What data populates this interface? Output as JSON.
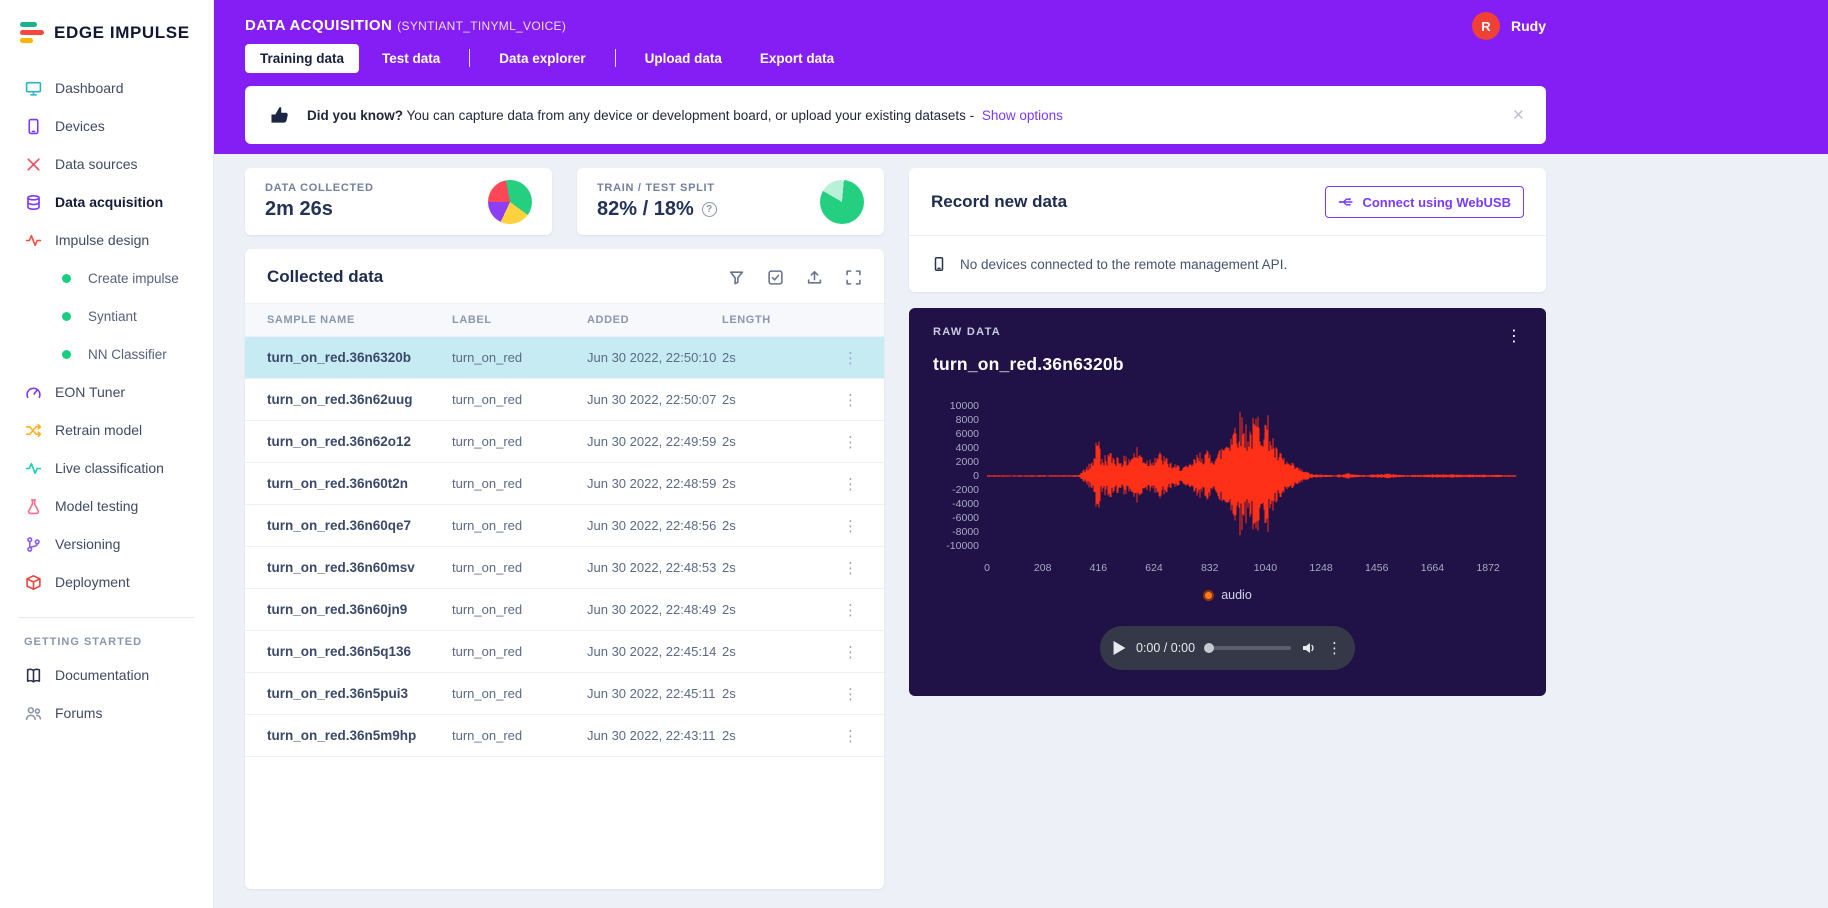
{
  "colors": {
    "header_purple": "#851ef5",
    "accent_purple": "#7b3aff",
    "wave_red": "#ff3018",
    "raw_card_bg": "#201147",
    "selected_row": "#c7ebf2",
    "avatar_red": "#ef4136"
  },
  "sidebar": {
    "logo_text": "EDGE IMPULSE",
    "items": [
      {
        "label": "Dashboard",
        "icon": "monitor-icon",
        "color": "#2bb3c0"
      },
      {
        "label": "Devices",
        "icon": "phone-icon",
        "color": "#7b3aff"
      },
      {
        "label": "Data sources",
        "icon": "data-sources-icon",
        "color": "#f5495f"
      },
      {
        "label": "Data acquisition",
        "icon": "database-icon",
        "color": "#7b3aff",
        "active": true
      },
      {
        "label": "Impulse design",
        "icon": "impulse-icon",
        "color": "#ff4a3d"
      },
      {
        "label": "Create impulse",
        "icon": "green-dot-icon",
        "color": "#17cf7e",
        "sub": true
      },
      {
        "label": "Syntiant",
        "icon": "green-dot-icon",
        "color": "#17cf7e",
        "sub": true
      },
      {
        "label": "NN Classifier",
        "icon": "green-dot-icon",
        "color": "#17cf7e",
        "sub": true
      },
      {
        "label": "EON Tuner",
        "icon": "gauge-icon",
        "color": "#7b3aff"
      },
      {
        "label": "Retrain model",
        "icon": "shuffle-icon",
        "color": "#ffb020"
      },
      {
        "label": "Live classification",
        "icon": "pulse-icon",
        "color": "#17cfae"
      },
      {
        "label": "Model testing",
        "icon": "flask-icon",
        "color": "#ff6b8a"
      },
      {
        "label": "Versioning",
        "icon": "branch-icon",
        "color": "#8a5cf6"
      },
      {
        "label": "Deployment",
        "icon": "box-icon",
        "color": "#e8453c"
      }
    ],
    "section_header": "GETTING STARTED",
    "footer_items": [
      {
        "label": "Documentation",
        "icon": "book-icon",
        "color": "#27304d"
      },
      {
        "label": "Forums",
        "icon": "people-icon",
        "color": "#8b96ab"
      }
    ]
  },
  "header": {
    "title": "DATA ACQUISITION",
    "subtitle": "(SYNTIANT_TINYML_VOICE)",
    "user": {
      "initial": "R",
      "name": "Rudy"
    },
    "tabs": [
      {
        "label": "Training data",
        "active": true
      },
      {
        "label": "Test data",
        "divider_after": true
      },
      {
        "label": "Data explorer",
        "divider_after": true
      },
      {
        "label": "Upload data"
      },
      {
        "label": "Export data"
      }
    ],
    "banner": {
      "bold": "Did you know?",
      "text": "You can capture data from any device or development board, or upload your existing datasets -",
      "link": "Show options",
      "close": "×"
    }
  },
  "stats": {
    "data_collected": {
      "label": "DATA COLLECTED",
      "value": "2m 26s",
      "pie": {
        "from_deg": -90,
        "segments": [
          {
            "color": "#ff4757",
            "pct": 22
          },
          {
            "color": "#24d07f",
            "pct": 38
          },
          {
            "color": "#ffd23e",
            "pct": 22
          },
          {
            "color": "#8e3ff5",
            "pct": 18
          }
        ]
      }
    },
    "train_test_split": {
      "label": "TRAIN / TEST SPLIT",
      "value": "82% / 18%",
      "info": "?",
      "pie": {
        "from_deg": 5,
        "segments": [
          {
            "color": "#24d07f",
            "pct": 82
          },
          {
            "color": "#b9f0d8",
            "pct": 18
          }
        ]
      }
    }
  },
  "collected": {
    "title": "Collected data",
    "toolbar_icons": [
      "filter-icon",
      "select-all-icon",
      "upload-icon",
      "expand-icon"
    ],
    "columns": [
      "SAMPLE NAME",
      "LABEL",
      "ADDED",
      "LENGTH"
    ],
    "kebab": "⋮",
    "rows": [
      {
        "name": "turn_on_red.36n6320b",
        "label": "turn_on_red",
        "added": "Jun 30 2022, 22:50:10",
        "length": "2s",
        "selected": true
      },
      {
        "name": "turn_on_red.36n62uug",
        "label": "turn_on_red",
        "added": "Jun 30 2022, 22:50:07",
        "length": "2s"
      },
      {
        "name": "turn_on_red.36n62o12",
        "label": "turn_on_red",
        "added": "Jun 30 2022, 22:49:59",
        "length": "2s"
      },
      {
        "name": "turn_on_red.36n60t2n",
        "label": "turn_on_red",
        "added": "Jun 30 2022, 22:48:59",
        "length": "2s"
      },
      {
        "name": "turn_on_red.36n60qe7",
        "label": "turn_on_red",
        "added": "Jun 30 2022, 22:48:56",
        "length": "2s"
      },
      {
        "name": "turn_on_red.36n60msv",
        "label": "turn_on_red",
        "added": "Jun 30 2022, 22:48:53",
        "length": "2s"
      },
      {
        "name": "turn_on_red.36n60jn9",
        "label": "turn_on_red",
        "added": "Jun 30 2022, 22:48:49",
        "length": "2s"
      },
      {
        "name": "turn_on_red.36n5q136",
        "label": "turn_on_red",
        "added": "Jun 30 2022, 22:45:14",
        "length": "2s"
      },
      {
        "name": "turn_on_red.36n5pui3",
        "label": "turn_on_red",
        "added": "Jun 30 2022, 22:45:11",
        "length": "2s"
      },
      {
        "name": "turn_on_red.36n5m9hp",
        "label": "turn_on_red",
        "added": "Jun 30 2022, 22:43:11",
        "length": "2s"
      }
    ]
  },
  "record": {
    "title": "Record new data",
    "button": "Connect using WebUSB",
    "status": "No devices connected to the remote management API."
  },
  "raw_data": {
    "label": "RAW DATA",
    "title": "turn_on_red.36n6320b",
    "kebab": "⋮",
    "legend": "audio",
    "chart": {
      "type": "waveform",
      "y_ticks": [
        "10000",
        "8000",
        "6000",
        "4000",
        "2000",
        "0",
        "-2000",
        "-4000",
        "-6000",
        "-8000",
        "-10000"
      ],
      "x_ticks": [
        "0",
        "208",
        "416",
        "624",
        "832",
        "1040",
        "1248",
        "1456",
        "1664",
        "1872"
      ],
      "x_range": [
        0,
        1980
      ],
      "y_range": [
        -10000,
        10000
      ],
      "envelope": [
        [
          0,
          130
        ],
        [
          340,
          130
        ],
        [
          360,
          900
        ],
        [
          395,
          2400
        ],
        [
          415,
          8200
        ],
        [
          425,
          2600
        ],
        [
          450,
          3600
        ],
        [
          520,
          2800
        ],
        [
          560,
          4400
        ],
        [
          600,
          2600
        ],
        [
          640,
          3800
        ],
        [
          700,
          1700
        ],
        [
          750,
          1500
        ],
        [
          800,
          3900
        ],
        [
          860,
          3500
        ],
        [
          900,
          6500
        ],
        [
          940,
          9800
        ],
        [
          980,
          7500
        ],
        [
          1010,
          9600
        ],
        [
          1050,
          8800
        ],
        [
          1080,
          4200
        ],
        [
          1120,
          2400
        ],
        [
          1180,
          900
        ],
        [
          1220,
          260
        ],
        [
          1300,
          160
        ],
        [
          1350,
          420
        ],
        [
          1400,
          150
        ],
        [
          1500,
          380
        ],
        [
          1560,
          140
        ],
        [
          1700,
          300
        ],
        [
          1980,
          120
        ]
      ]
    },
    "player": {
      "time": "0:00 / 0:00"
    }
  }
}
